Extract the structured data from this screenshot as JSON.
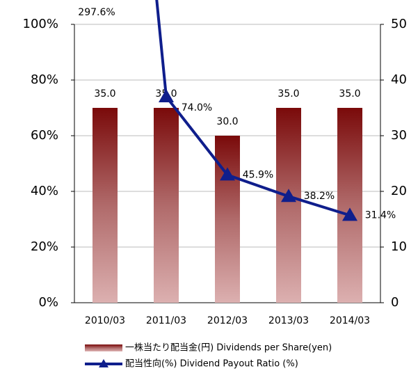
{
  "chart_data": {
    "type": "bar_line",
    "categories": [
      "2010/03",
      "2011/03",
      "2012/03",
      "2013/03",
      "2014/03"
    ],
    "series": [
      {
        "name": "一株当たり配当金(円) Dividends per Share(yen)",
        "type": "bar",
        "axis": "y2",
        "color": "#7a0a0a",
        "values": [
          35,
          35,
          30,
          35,
          35
        ],
        "value_labels": [
          "35.0",
          "35.0",
          "30.0",
          "35.0",
          "35.0"
        ]
      },
      {
        "name": "配当性向(%) Dividend Payout Ratio (%)",
        "type": "line",
        "axis": "y",
        "color": "#0f1e8c",
        "values": [
          297.6,
          74.0,
          45.9,
          38.2,
          31.4
        ],
        "value_labels": [
          "297.6%",
          "74.0%",
          "45.9%",
          "38.2%",
          "31.4%"
        ]
      }
    ],
    "ylim": [
      0,
      100
    ],
    "yticks": [
      {
        "value": 0,
        "label": "0%"
      },
      {
        "value": 20,
        "label": "20%"
      },
      {
        "value": 40,
        "label": "40%"
      },
      {
        "value": 60,
        "label": "60%"
      },
      {
        "value": 80,
        "label": "80%"
      },
      {
        "value": 100,
        "label": "100%"
      }
    ],
    "y2lim": [
      0,
      50
    ],
    "y2ticks": [
      0,
      10,
      20,
      30,
      40,
      50
    ],
    "grid": true,
    "legend": "bottom"
  }
}
